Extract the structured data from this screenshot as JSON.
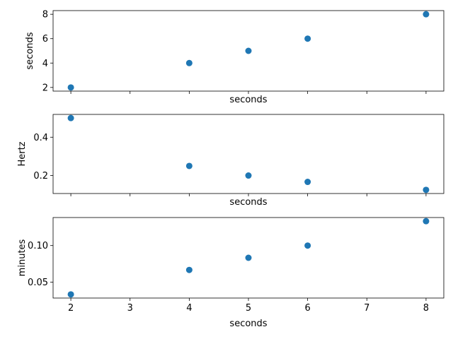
{
  "chart_data": [
    {
      "type": "scatter",
      "xlabel": "seconds",
      "ylabel": "seconds",
      "x": [
        2,
        4,
        5,
        6,
        8
      ],
      "y": [
        2,
        4,
        5,
        6,
        8
      ],
      "xlim": [
        1.7,
        8.3
      ],
      "ylim": [
        1.7,
        8.3
      ],
      "xticks": [
        2,
        3,
        4,
        5,
        6,
        7,
        8
      ],
      "xticklabels": [],
      "yticks": [
        2,
        4,
        6,
        8
      ],
      "yticklabels": [
        "2",
        "4",
        "6",
        "8"
      ],
      "color": "#1f77b4"
    },
    {
      "type": "scatter",
      "xlabel": "seconds",
      "ylabel": "Hertz",
      "x": [
        2,
        4,
        5,
        6,
        8
      ],
      "y": [
        0.5,
        0.25,
        0.2,
        0.1667,
        0.125
      ],
      "xlim": [
        1.7,
        8.3
      ],
      "ylim": [
        0.106,
        0.519
      ],
      "xticks": [
        2,
        3,
        4,
        5,
        6,
        7,
        8
      ],
      "xticklabels": [],
      "yticks": [
        0.2,
        0.4
      ],
      "yticklabels": [
        "0.2",
        "0.4"
      ],
      "color": "#1f77b4"
    },
    {
      "type": "scatter",
      "xlabel": "seconds",
      "ylabel": "minutes",
      "x": [
        2,
        4,
        5,
        6,
        8
      ],
      "y": [
        0.0333,
        0.0667,
        0.0833,
        0.1,
        0.1333
      ],
      "xlim": [
        1.7,
        8.3
      ],
      "ylim": [
        0.0283,
        0.1383
      ],
      "xticks": [
        2,
        3,
        4,
        5,
        6,
        7,
        8
      ],
      "xticklabels": [
        "2",
        "3",
        "4",
        "5",
        "6",
        "7",
        "8"
      ],
      "yticks": [
        0.05,
        0.1
      ],
      "yticklabels": [
        "0.05",
        "0.10"
      ],
      "color": "#1f77b4"
    }
  ]
}
